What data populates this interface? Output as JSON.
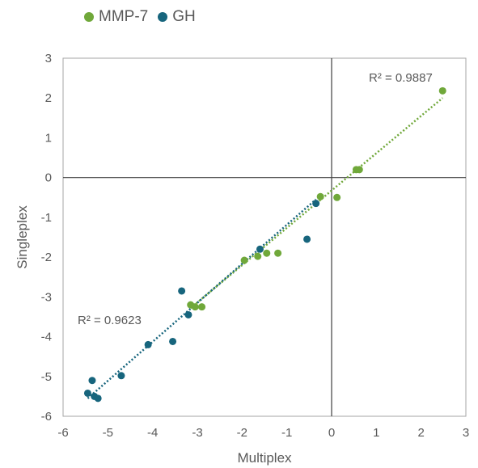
{
  "chart_data": {
    "type": "scatter",
    "xlabel": "Multiplex",
    "ylabel": "Singleplex",
    "xlim": [
      -6,
      3
    ],
    "ylim": [
      -6,
      3
    ],
    "x_ticks": [
      -6,
      -5,
      -4,
      -3,
      -2,
      -1,
      0,
      1,
      2,
      3
    ],
    "y_ticks": [
      -6,
      -5,
      -4,
      -3,
      -2,
      -1,
      0,
      1,
      2,
      3
    ],
    "grid": false,
    "legend_position": "top",
    "series": [
      {
        "name": "MMP-7",
        "color": "#70A83A",
        "points": [
          {
            "x": 2.48,
            "y": 2.18
          },
          {
            "x": 0.62,
            "y": 0.2
          },
          {
            "x": 0.55,
            "y": 0.2
          },
          {
            "x": 0.12,
            "y": -0.5
          },
          {
            "x": -0.25,
            "y": -0.48
          },
          {
            "x": -1.2,
            "y": -1.9
          },
          {
            "x": -1.45,
            "y": -1.9
          },
          {
            "x": -1.65,
            "y": -1.98
          },
          {
            "x": -1.95,
            "y": -2.08
          },
          {
            "x": -2.9,
            "y": -3.25
          },
          {
            "x": -3.05,
            "y": -3.25
          },
          {
            "x": -3.15,
            "y": -3.2
          }
        ],
        "trendline": {
          "x_range": [
            -3.15,
            2.48
          ],
          "y_range": [
            -3.28,
            2.0
          ]
        },
        "r_squared_label": "R² = 0.9887"
      },
      {
        "name": "GH",
        "color": "#17657D",
        "points": [
          {
            "x": -0.35,
            "y": -0.65
          },
          {
            "x": -0.55,
            "y": -1.55
          },
          {
            "x": -1.6,
            "y": -1.8
          },
          {
            "x": -3.2,
            "y": -3.45
          },
          {
            "x": -3.35,
            "y": -2.85
          },
          {
            "x": -3.55,
            "y": -4.12
          },
          {
            "x": -4.1,
            "y": -4.2
          },
          {
            "x": -4.7,
            "y": -4.98
          },
          {
            "x": -5.35,
            "y": -5.1
          },
          {
            "x": -5.45,
            "y": -5.42
          },
          {
            "x": -5.3,
            "y": -5.5
          },
          {
            "x": -5.22,
            "y": -5.55
          }
        ],
        "trendline": {
          "x_range": [
            -5.45,
            -0.35
          ],
          "y_range": [
            -5.55,
            -0.55
          ]
        },
        "r_squared_label": "R² = 0.9623"
      }
    ]
  }
}
